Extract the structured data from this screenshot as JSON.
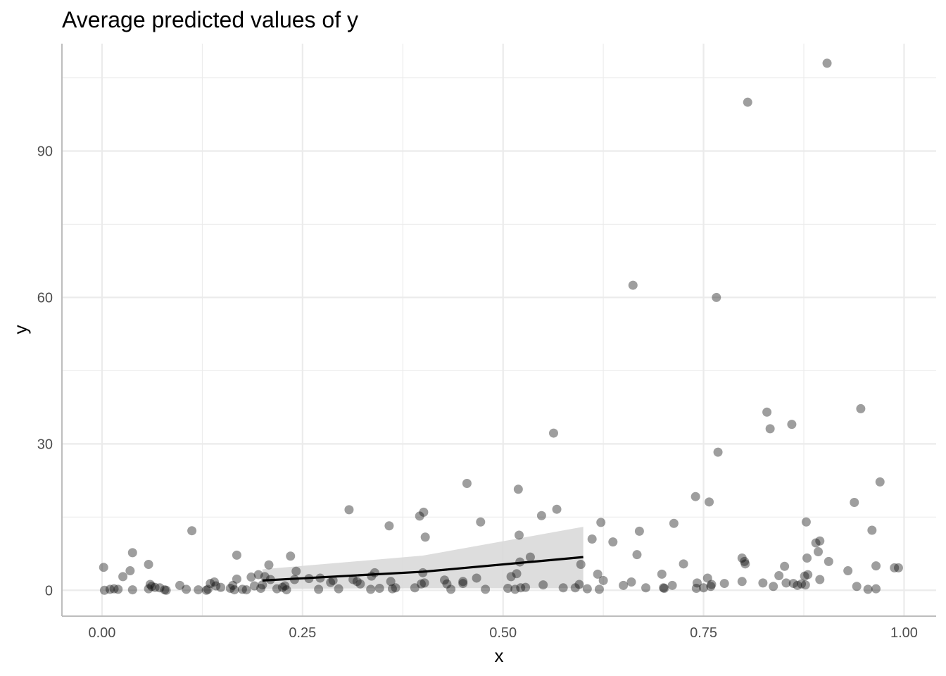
{
  "chart_data": {
    "type": "scatter",
    "title": "Average predicted values of y",
    "xlabel": "x",
    "ylabel": "y",
    "xlim": [
      -0.05,
      1.04
    ],
    "ylim": [
      -5.3,
      112
    ],
    "x_ticks": [
      0,
      0.25,
      0.5,
      0.75,
      1
    ],
    "x_tick_labels": [
      "0.00",
      "0.25",
      "0.50",
      "0.75",
      "1.00"
    ],
    "y_ticks": [
      0,
      30,
      60,
      90
    ],
    "y_tick_labels": [
      "0",
      "30",
      "60",
      "90"
    ],
    "grid": true,
    "legend": "none",
    "colors": {
      "points": "#000000",
      "points_opacity": 0.38,
      "line": "#000000",
      "ribbon": "#d9d9d9",
      "grid": "#ebebeb",
      "axis": "#bdbdbd"
    },
    "prediction": {
      "x": [
        0.2,
        0.4,
        0.6
      ],
      "y": [
        2.0,
        3.8,
        6.8
      ],
      "ci_low": [
        0.3,
        0.4,
        0.4
      ],
      "ci_high": [
        4.3,
        7.1,
        13.0
      ]
    },
    "points": [
      [
        0.002,
        4.7
      ],
      [
        0.003,
        0.0
      ],
      [
        0.01,
        0.2
      ],
      [
        0.015,
        0.3
      ],
      [
        0.02,
        0.2
      ],
      [
        0.026,
        2.8
      ],
      [
        0.035,
        4.0
      ],
      [
        0.038,
        7.7
      ],
      [
        0.038,
        0.1
      ],
      [
        0.058,
        5.3
      ],
      [
        0.058,
        0.3
      ],
      [
        0.06,
        1.2
      ],
      [
        0.062,
        0.8
      ],
      [
        0.066,
        0.6
      ],
      [
        0.072,
        0.5
      ],
      [
        0.078,
        0.1
      ],
      [
        0.08,
        0.0
      ],
      [
        0.097,
        1.0
      ],
      [
        0.105,
        0.2
      ],
      [
        0.112,
        12.2
      ],
      [
        0.12,
        0.1
      ],
      [
        0.13,
        0.0
      ],
      [
        0.132,
        0.2
      ],
      [
        0.135,
        1.4
      ],
      [
        0.14,
        1.7
      ],
      [
        0.142,
        0.9
      ],
      [
        0.148,
        0.6
      ],
      [
        0.16,
        0.4
      ],
      [
        0.163,
        1.0
      ],
      [
        0.165,
        0.1
      ],
      [
        0.168,
        2.3
      ],
      [
        0.168,
        7.2
      ],
      [
        0.175,
        0.2
      ],
      [
        0.18,
        0.1
      ],
      [
        0.186,
        2.7
      ],
      [
        0.19,
        0.9
      ],
      [
        0.195,
        3.2
      ],
      [
        0.198,
        0.4
      ],
      [
        0.2,
        1.1
      ],
      [
        0.203,
        2.8
      ],
      [
        0.208,
        5.2
      ],
      [
        0.21,
        2.2
      ],
      [
        0.218,
        0.3
      ],
      [
        0.225,
        0.6
      ],
      [
        0.228,
        0.9
      ],
      [
        0.23,
        0.1
      ],
      [
        0.235,
        7.0
      ],
      [
        0.24,
        2.2
      ],
      [
        0.242,
        3.9
      ],
      [
        0.258,
        2.4
      ],
      [
        0.27,
        0.2
      ],
      [
        0.272,
        2.5
      ],
      [
        0.285,
        1.6
      ],
      [
        0.288,
        2.0
      ],
      [
        0.295,
        0.3
      ],
      [
        0.308,
        16.5
      ],
      [
        0.313,
        2.2
      ],
      [
        0.318,
        1.8
      ],
      [
        0.322,
        1.3
      ],
      [
        0.335,
        0.2
      ],
      [
        0.336,
        2.9
      ],
      [
        0.34,
        3.6
      ],
      [
        0.346,
        0.4
      ],
      [
        0.358,
        13.2
      ],
      [
        0.36,
        1.8
      ],
      [
        0.362,
        0.3
      ],
      [
        0.366,
        0.5
      ],
      [
        0.39,
        0.5
      ],
      [
        0.396,
        15.2
      ],
      [
        0.398,
        1.3
      ],
      [
        0.4,
        3.6
      ],
      [
        0.401,
        16.0
      ],
      [
        0.402,
        1.5
      ],
      [
        0.403,
        10.9
      ],
      [
        0.427,
        2.1
      ],
      [
        0.43,
        1.3
      ],
      [
        0.435,
        0.2
      ],
      [
        0.45,
        1.8
      ],
      [
        0.45,
        1.4
      ],
      [
        0.455,
        21.9
      ],
      [
        0.467,
        2.5
      ],
      [
        0.472,
        14.0
      ],
      [
        0.478,
        0.2
      ],
      [
        0.506,
        0.4
      ],
      [
        0.51,
        2.8
      ],
      [
        0.515,
        0.2
      ],
      [
        0.517,
        3.4
      ],
      [
        0.519,
        20.7
      ],
      [
        0.52,
        11.3
      ],
      [
        0.521,
        5.8
      ],
      [
        0.522,
        0.5
      ],
      [
        0.528,
        0.6
      ],
      [
        0.534,
        6.8
      ],
      [
        0.548,
        15.3
      ],
      [
        0.55,
        1.1
      ],
      [
        0.563,
        32.2
      ],
      [
        0.567,
        16.6
      ],
      [
        0.575,
        0.5
      ],
      [
        0.59,
        0.5
      ],
      [
        0.595,
        1.2
      ],
      [
        0.597,
        5.3
      ],
      [
        0.605,
        0.3
      ],
      [
        0.611,
        10.5
      ],
      [
        0.618,
        3.3
      ],
      [
        0.62,
        0.2
      ],
      [
        0.622,
        13.9
      ],
      [
        0.625,
        2.0
      ],
      [
        0.637,
        9.9
      ],
      [
        0.65,
        1.0
      ],
      [
        0.66,
        1.7
      ],
      [
        0.662,
        62.5
      ],
      [
        0.667,
        7.3
      ],
      [
        0.67,
        12.1
      ],
      [
        0.678,
        0.5
      ],
      [
        0.698,
        3.3
      ],
      [
        0.7,
        0.5
      ],
      [
        0.701,
        0.4
      ],
      [
        0.711,
        1.0
      ],
      [
        0.713,
        13.7
      ],
      [
        0.725,
        5.4
      ],
      [
        0.74,
        19.2
      ],
      [
        0.741,
        0.4
      ],
      [
        0.742,
        1.5
      ],
      [
        0.75,
        0.5
      ],
      [
        0.755,
        2.5
      ],
      [
        0.757,
        18.1
      ],
      [
        0.759,
        0.8
      ],
      [
        0.76,
        1.2
      ],
      [
        0.766,
        60.0
      ],
      [
        0.768,
        28.3
      ],
      [
        0.776,
        1.4
      ],
      [
        0.798,
        6.6
      ],
      [
        0.798,
        1.8
      ],
      [
        0.801,
        5.9
      ],
      [
        0.802,
        5.4
      ],
      [
        0.805,
        100.0
      ],
      [
        0.824,
        1.5
      ],
      [
        0.829,
        36.5
      ],
      [
        0.833,
        33.1
      ],
      [
        0.837,
        0.8
      ],
      [
        0.844,
        3.0
      ],
      [
        0.851,
        4.9
      ],
      [
        0.853,
        1.5
      ],
      [
        0.86,
        34.0
      ],
      [
        0.862,
        1.4
      ],
      [
        0.867,
        1.0
      ],
      [
        0.872,
        1.3
      ],
      [
        0.876,
        2.9
      ],
      [
        0.877,
        1.1
      ],
      [
        0.878,
        14.0
      ],
      [
        0.879,
        6.6
      ],
      [
        0.88,
        3.2
      ],
      [
        0.89,
        9.7
      ],
      [
        0.893,
        7.9
      ],
      [
        0.895,
        2.2
      ],
      [
        0.895,
        10.1
      ],
      [
        0.904,
        108.0
      ],
      [
        0.906,
        5.9
      ],
      [
        0.93,
        4.0
      ],
      [
        0.938,
        18.0
      ],
      [
        0.941,
        0.8
      ],
      [
        0.946,
        37.2
      ],
      [
        0.955,
        0.2
      ],
      [
        0.96,
        12.3
      ],
      [
        0.965,
        0.3
      ],
      [
        0.965,
        5.0
      ],
      [
        0.97,
        22.2
      ],
      [
        0.988,
        4.6
      ],
      [
        0.993,
        4.6
      ]
    ]
  }
}
